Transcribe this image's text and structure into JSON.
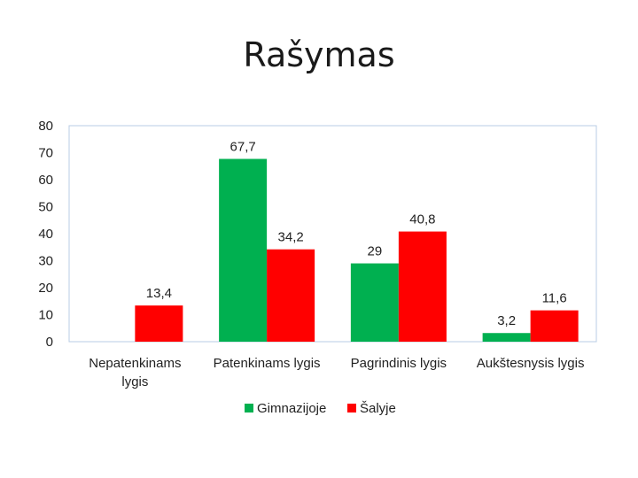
{
  "chart_data": {
    "type": "bar",
    "title": "Rašymas",
    "categories": [
      [
        "Nepatenkinams",
        "lygis"
      ],
      [
        "Patenkinams lygis"
      ],
      [
        "Pagrindinis lygis"
      ],
      [
        "Aukštesnysis lygis"
      ]
    ],
    "series": [
      {
        "name": "Gimnazijoje",
        "color": "#00b050",
        "values": [
          null,
          67.7,
          29,
          3.2
        ],
        "labels": [
          "",
          "67,7",
          "29",
          "3,2"
        ]
      },
      {
        "name": "Šalyje",
        "color": "#ff0000",
        "values": [
          13.4,
          34.2,
          40.8,
          11.6
        ],
        "labels": [
          "13,4",
          "34,2",
          "40,8",
          "11,6"
        ]
      }
    ],
    "ylim": [
      0,
      80
    ],
    "yticks": [
      "0",
      "10",
      "20",
      "30",
      "40",
      "50",
      "60",
      "70",
      "80"
    ],
    "grid": false,
    "legend": "bottom"
  }
}
